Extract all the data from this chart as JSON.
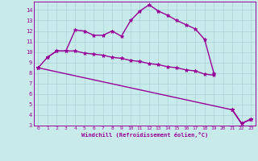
{
  "x": [
    0,
    1,
    2,
    3,
    4,
    5,
    6,
    7,
    8,
    9,
    10,
    11,
    12,
    13,
    14,
    15,
    16,
    17,
    18,
    19,
    20,
    21,
    22,
    23
  ],
  "line1": [
    null,
    9.5,
    10.1,
    10.1,
    12.1,
    12.0,
    11.6,
    11.6,
    12.0,
    11.5,
    13.0,
    13.9,
    14.5,
    13.9,
    13.5,
    13.0,
    12.6,
    12.2,
    11.2,
    8.0,
    null,
    null,
    null,
    3.6
  ],
  "line2": [
    8.5,
    9.5,
    10.1,
    10.1,
    10.1,
    9.9,
    9.8,
    9.7,
    9.5,
    9.4,
    9.2,
    9.1,
    8.9,
    8.8,
    8.6,
    8.5,
    8.3,
    8.2,
    7.9,
    7.8,
    null,
    4.5,
    3.2,
    3.6
  ],
  "line3": [
    8.5,
    null,
    null,
    null,
    null,
    null,
    null,
    null,
    null,
    null,
    null,
    null,
    null,
    null,
    null,
    null,
    null,
    null,
    null,
    null,
    null,
    4.5,
    3.2,
    3.6
  ],
  "color": "#990099",
  "bg_color": "#c8eaea",
  "grid_color": "#aad4d4",
  "xlabel": "Windchill (Refroidissement éolien,°C)",
  "xlim": [
    -0.5,
    23.5
  ],
  "ylim": [
    3,
    14.8
  ],
  "yticks": [
    3,
    4,
    5,
    6,
    7,
    8,
    9,
    10,
    11,
    12,
    13,
    14
  ],
  "xticks": [
    0,
    1,
    2,
    3,
    4,
    5,
    6,
    7,
    8,
    9,
    10,
    11,
    12,
    13,
    14,
    15,
    16,
    17,
    18,
    19,
    20,
    21,
    22,
    23
  ],
  "marker": "*",
  "markersize": 3.5,
  "linewidth": 1.0
}
